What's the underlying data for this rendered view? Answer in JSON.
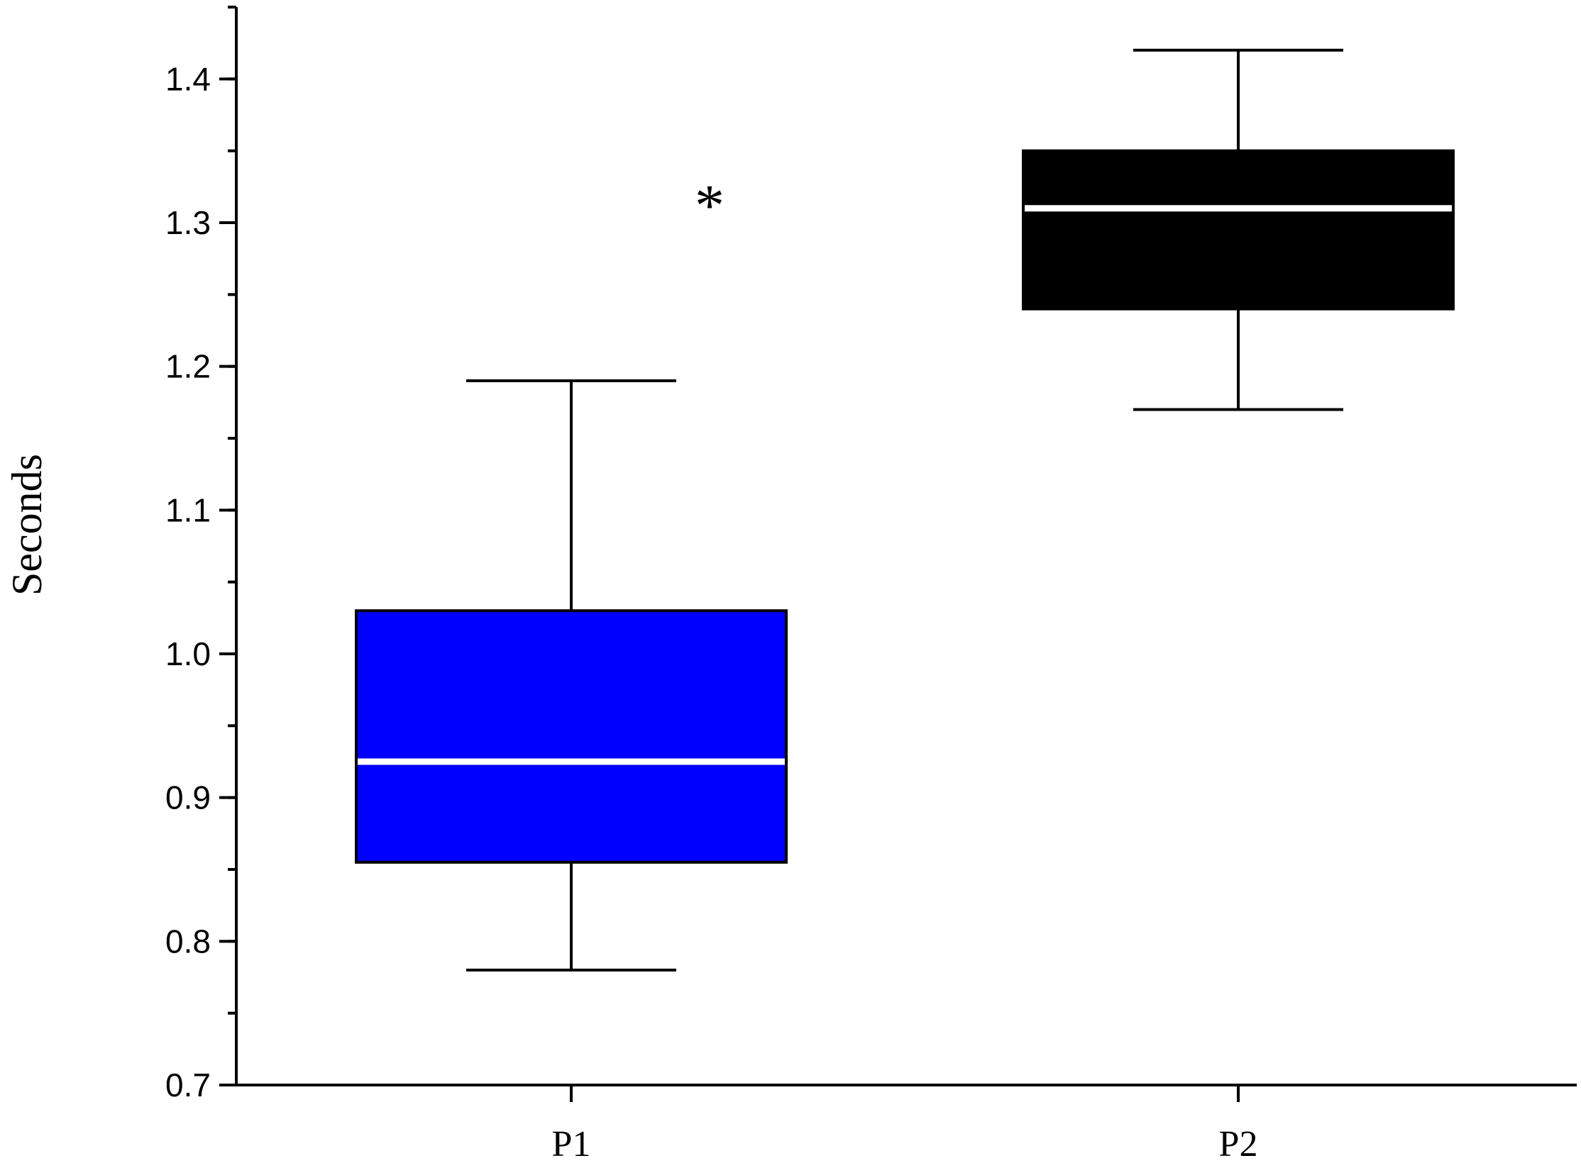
{
  "chart_data": {
    "type": "box",
    "ylabel": "Seconds",
    "xlabel": "",
    "ylim": [
      0.7,
      1.45
    ],
    "yticks": [
      0.7,
      0.8,
      0.9,
      1.0,
      1.1,
      1.2,
      1.3,
      1.4
    ],
    "ytick_labels": [
      "0.7",
      "0.8",
      "0.9",
      "1.0",
      "1.1",
      "1.2",
      "1.3",
      "1.4"
    ],
    "minor_tick_step": 0.05,
    "categories": [
      "P1",
      "P2"
    ],
    "boxes": [
      {
        "category": "P1",
        "whisker_low": 0.78,
        "q1": 0.855,
        "median": 0.925,
        "q3": 1.03,
        "whisker_high": 1.19,
        "color": "#0000ff"
      },
      {
        "category": "P2",
        "whisker_low": 1.17,
        "q1": 1.24,
        "median": 1.31,
        "q3": 1.35,
        "whisker_high": 1.42,
        "color": "#000000"
      }
    ],
    "annotations": [
      {
        "text": "*",
        "x_between": [
          "P1",
          "P2"
        ],
        "y": 1.32
      }
    ],
    "grid": false,
    "legend": "none"
  }
}
